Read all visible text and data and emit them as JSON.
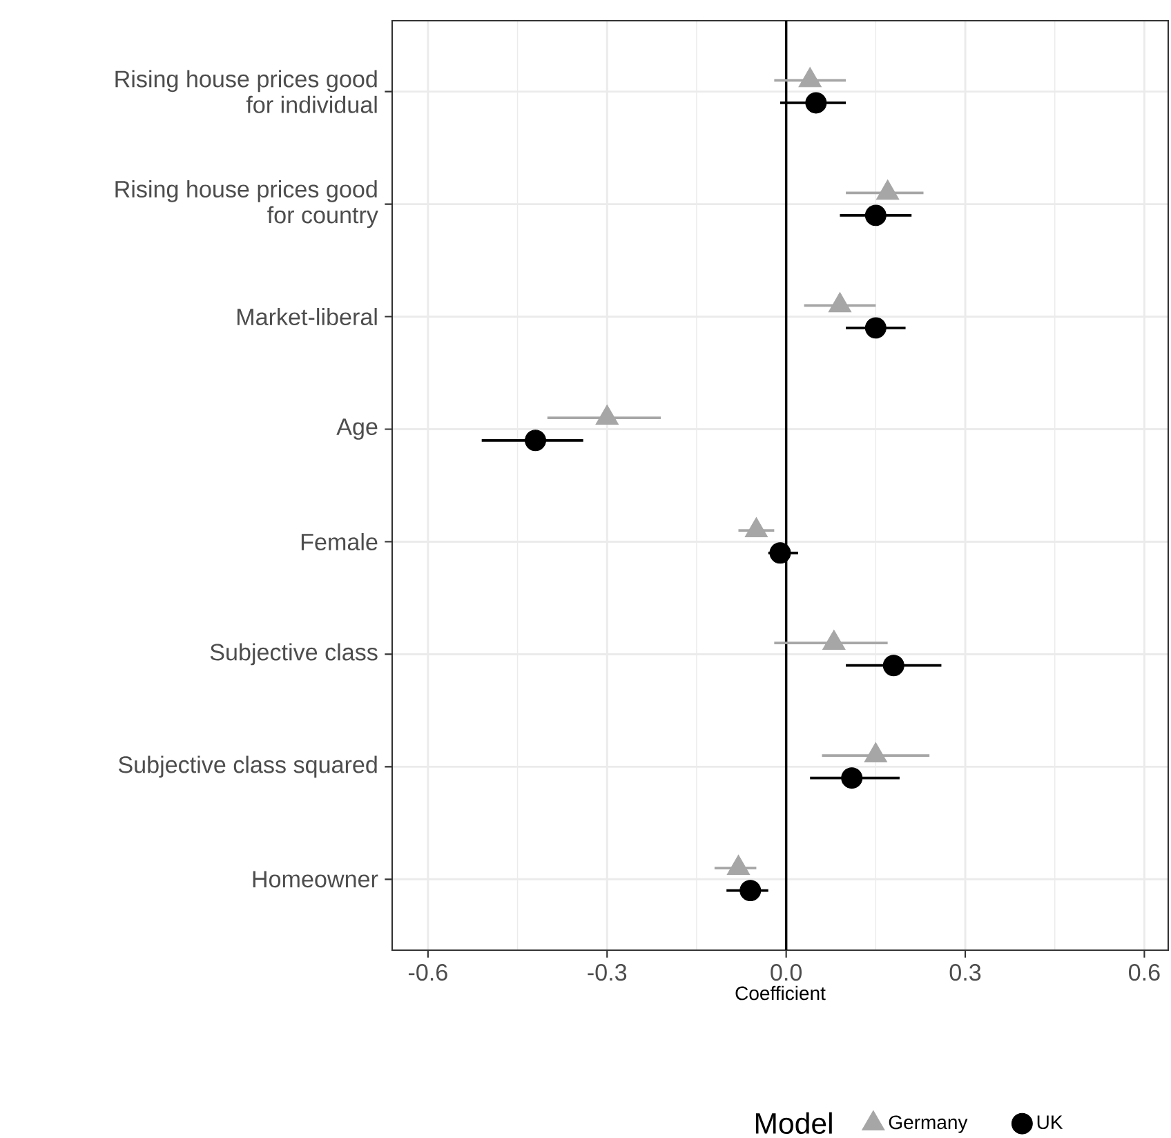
{
  "chart_data": {
    "type": "scatter",
    "orientation": "horizontal",
    "xlabel": "Coefficient",
    "legend_title": "Model",
    "legend": "bottom",
    "grid": true,
    "categories": [
      "Rising house prices good for individual",
      "Rising house prices good for country",
      "Market-liberal",
      "Age",
      "Female",
      "Subjective class",
      "Subjective class squared",
      "Homeowner"
    ],
    "xlim": [
      -0.66,
      0.64
    ],
    "xticks": [
      {
        "value": -0.6,
        "label": "-0.6"
      },
      {
        "value": -0.3,
        "label": "-0.3"
      },
      {
        "value": 0,
        "label": "0.0"
      },
      {
        "value": 0.3,
        "label": "0.3"
      },
      {
        "value": 0.6,
        "label": "0.6"
      }
    ],
    "ref_lines": [
      {
        "axis": "x",
        "value": 0,
        "color": "#000000"
      }
    ],
    "series": [
      {
        "name": "Germany",
        "color": "#a6a6a6",
        "marker": "triangle",
        "values": [
          0.04,
          0.17,
          0.09,
          -0.3,
          -0.05,
          0.08,
          0.15,
          -0.08
        ],
        "errors": [
          [
            -0.02,
            0.1
          ],
          [
            0.1,
            0.23
          ],
          [
            0.03,
            0.15
          ],
          [
            -0.4,
            -0.21
          ],
          [
            -0.08,
            -0.02
          ],
          [
            -0.02,
            0.17
          ],
          [
            0.06,
            0.24
          ],
          [
            -0.12,
            -0.05
          ]
        ]
      },
      {
        "name": "UK",
        "color": "#000000",
        "marker": "circle",
        "values": [
          0.05,
          0.15,
          0.15,
          -0.42,
          -0.01,
          0.18,
          0.11,
          -0.06
        ],
        "errors": [
          [
            -0.01,
            0.1
          ],
          [
            0.09,
            0.21
          ],
          [
            0.1,
            0.2
          ],
          [
            -0.51,
            -0.34
          ],
          [
            -0.03,
            0.02
          ],
          [
            0.1,
            0.26
          ],
          [
            0.04,
            0.19
          ],
          [
            -0.1,
            -0.03
          ]
        ]
      }
    ]
  }
}
